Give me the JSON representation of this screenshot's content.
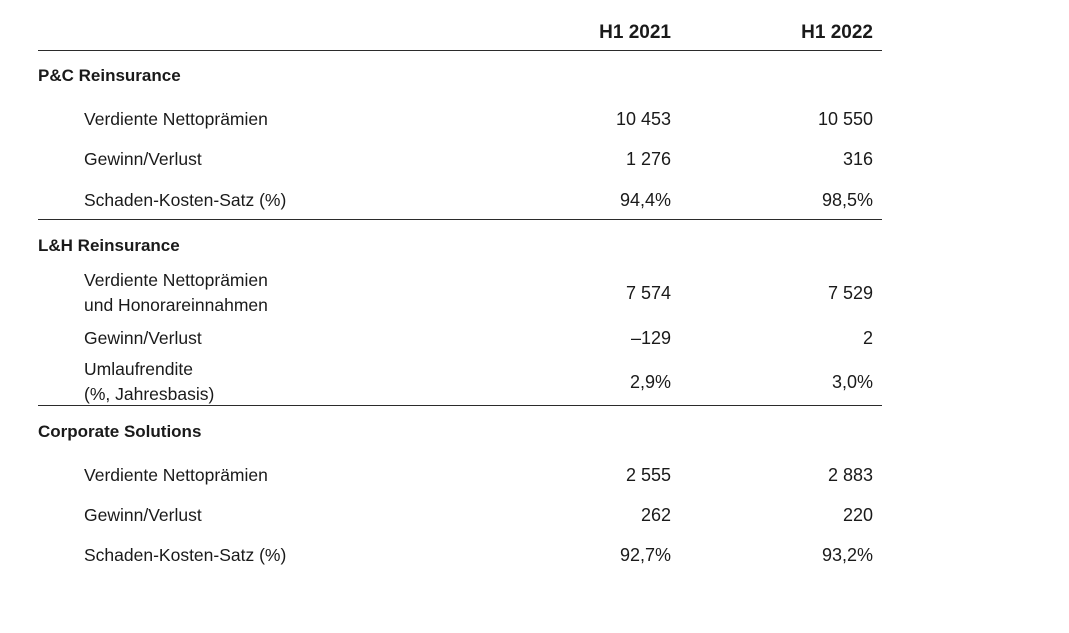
{
  "columns": {
    "col1": "H1 2021",
    "col2": "H1 2022"
  },
  "sections": [
    {
      "title": "P&C Reinsurance",
      "rows": [
        {
          "label": "Verdiente Nettoprämien",
          "v1": "10 453",
          "v2": "10 550"
        },
        {
          "label": "Gewinn/Verlust",
          "v1": "1 276",
          "v2": "316"
        },
        {
          "label": "Schaden-Kosten-Satz (%)",
          "v1": "94,4%",
          "v2": "98,5%"
        }
      ]
    },
    {
      "title": "L&H Reinsurance",
      "rows": [
        {
          "label_line1": "Verdiente Nettoprämien",
          "label_line2": "und Honorareinnahmen",
          "v1": "7 574",
          "v2": "7 529"
        },
        {
          "label": "Gewinn/Verlust",
          "v1": "–129",
          "v2": "2"
        },
        {
          "label_line1": "Umlaufrendite",
          "label_line2": "(%, Jahresbasis)",
          "v1": "2,9%",
          "v2": "3,0%"
        }
      ]
    },
    {
      "title": "Corporate Solutions",
      "rows": [
        {
          "label": "Verdiente Nettoprämien",
          "v1": "2 555",
          "v2": "2 883"
        },
        {
          "label": "Gewinn/Verlust",
          "v1": "262",
          "v2": "220"
        },
        {
          "label": "Schaden-Kosten-Satz (%)",
          "v1": "92,7%",
          "v2": "93,2%"
        }
      ]
    }
  ]
}
